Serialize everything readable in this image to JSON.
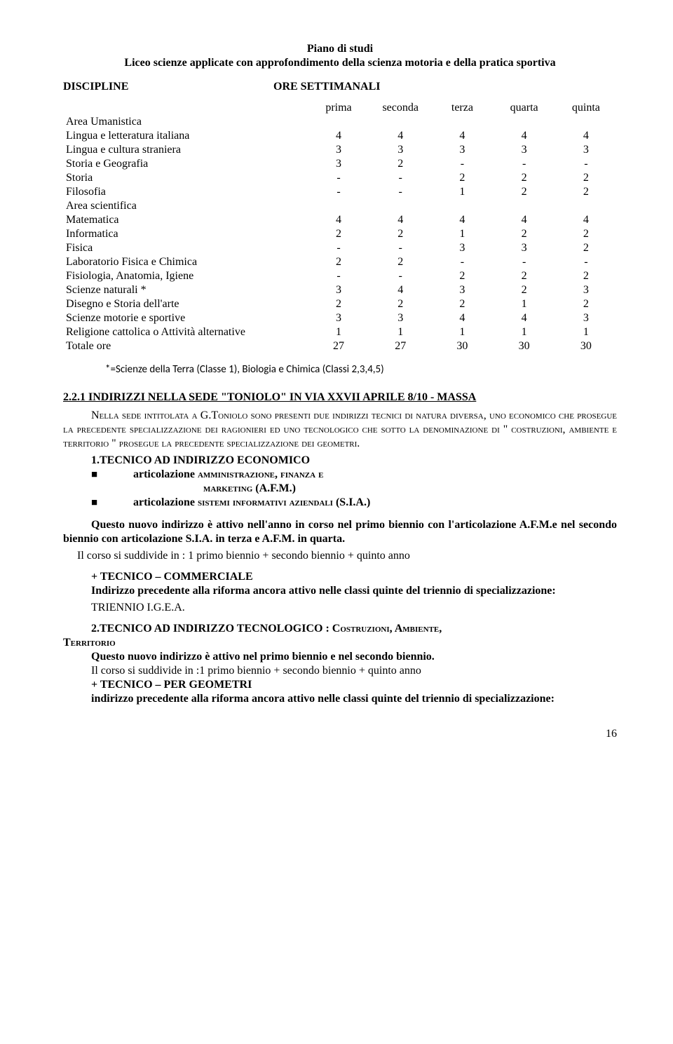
{
  "title": {
    "line1": "Piano di studi",
    "line2": "Liceo scienze applicate con approfondimento della scienza motoria e della pratica sportiva"
  },
  "headings": {
    "discipline": "DISCIPLINE",
    "ore": "ORE SETTIMANALI"
  },
  "columns": [
    "prima",
    "seconda",
    "terza",
    "quarta",
    "quinta"
  ],
  "sections": {
    "area_uman": "Area Umanistica",
    "area_sci": "Area scientifica"
  },
  "rows_uman": [
    {
      "label": "Lingua e letteratura italiana",
      "vals": [
        "4",
        "4",
        "4",
        "4",
        "4"
      ]
    },
    {
      "label": "Lingua e cultura straniera",
      "vals": [
        "3",
        "3",
        "3",
        "3",
        "3"
      ]
    },
    {
      "label": "Storia e Geografia",
      "vals": [
        "3",
        "2",
        "-",
        "-",
        "-"
      ]
    },
    {
      "label": "Storia",
      "vals": [
        "-",
        "-",
        "2",
        "2",
        "2"
      ]
    },
    {
      "label": "Filosofia",
      "vals": [
        "-",
        "-",
        "1",
        "2",
        "2"
      ]
    }
  ],
  "rows_sci": [
    {
      "label": "Matematica",
      "vals": [
        "4",
        "4",
        "4",
        "4",
        "4"
      ]
    },
    {
      "label": "Informatica",
      "vals": [
        "2",
        "2",
        "1",
        "2",
        "2"
      ]
    },
    {
      "label": "Fisica",
      "vals": [
        "-",
        "-",
        "3",
        "3",
        "2"
      ]
    },
    {
      "label": "Laboratorio Fisica e Chimica",
      "vals": [
        "2",
        "2",
        "-",
        "-",
        "-"
      ]
    },
    {
      "label": "Fisiologia, Anatomia, Igiene",
      "vals": [
        "-",
        "-",
        "2",
        "2",
        "2"
      ]
    },
    {
      "label": "Scienze naturali *",
      "vals": [
        "3",
        "4",
        "3",
        "2",
        "3"
      ]
    },
    {
      "label": "Disegno e Storia dell'arte",
      "vals": [
        "2",
        "2",
        "2",
        "1",
        "2"
      ]
    },
    {
      "label": "Scienze motorie e sportive",
      "vals": [
        "3",
        "3",
        "4",
        "4",
        "3"
      ]
    },
    {
      "label": "Religione cattolica o Attività alternative",
      "vals": [
        "1",
        "1",
        "1",
        "1",
        "1"
      ]
    },
    {
      "label": "Totale ore",
      "vals": [
        "27",
        "27",
        "30",
        "30",
        "30"
      ]
    }
  ],
  "footnote": "*=Scienze della Terra (Classe 1),  Biologia e Chimica (Classi 2,3,4,5)",
  "s221": {
    "num_title": "2.2.1  INDIRIZZI NELLA SEDE \"TONIOLO\"  IN VIA XXVII APRILE 8/10 -  MASSA",
    "lead_sc": "Nella sede intitolata a G.Toniolo sono presenti due indirizzi tecnici di natura diversa, uno economico che prosegue la precedente specializzazione dei ragionieri ed uno tecnologico che sotto la denominazione di \" costruzioni, ambiente e territorio \" prosegue la precedente specializzazione dei geometri.",
    "item1_title": "1.TECNICO AD INDIRIZZO ECONOMICO",
    "bullet1a": "articolazione ",
    "bullet1a_sc": "amministrazione, finanza e",
    "bullet1a_line2_sc": "marketing (",
    "bullet1a_line2_plain": "A.F.M.)",
    "bullet1b": "articolazione ",
    "bullet1b_sc": "sistemi informativi aziendali (",
    "bullet1b_plain": "S.I.A.)"
  },
  "para_nuovo": {
    "p1a": "Questo nuovo indirizzo è attivo    nell'anno in corso nel primo biennio con l'articolazione A.F.M.e nel secondo biennio con articolazione S.I.A. in terza e A.F.M. in quarta.",
    "p1b": "Il corso si suddivide in : 1 primo biennio + secondo biennio + quinto anno"
  },
  "tc": {
    "h": "+ TECNICO – COMMERCIALE",
    "p": "Indirizzo precedente alla riforma ancora attivo nelle classi quinte  del triennio di  specializzazione:",
    "p2": "TRIENNIO I.G.E.A."
  },
  "tt": {
    "h1": "2.TECNICO  AD INDIRIZZO TECNOLOGICO  : ",
    "h1_sc": "Costruzioni, Ambiente,",
    "h1_line2_sc": "Territorio",
    "p1": "Questo nuovo indirizzo è attivo nel primo biennio e nel secondo biennio.",
    "p2": "Il corso si suddivide in :1 primo biennio + secondo biennio + quinto anno",
    "h2": "+ TECNICO – PER GEOMETRI",
    "p3": "indirizzo precedente alla riforma ancora attivo nelle classi quinte  del triennio di  specializzazione:"
  },
  "pagenum": "16"
}
